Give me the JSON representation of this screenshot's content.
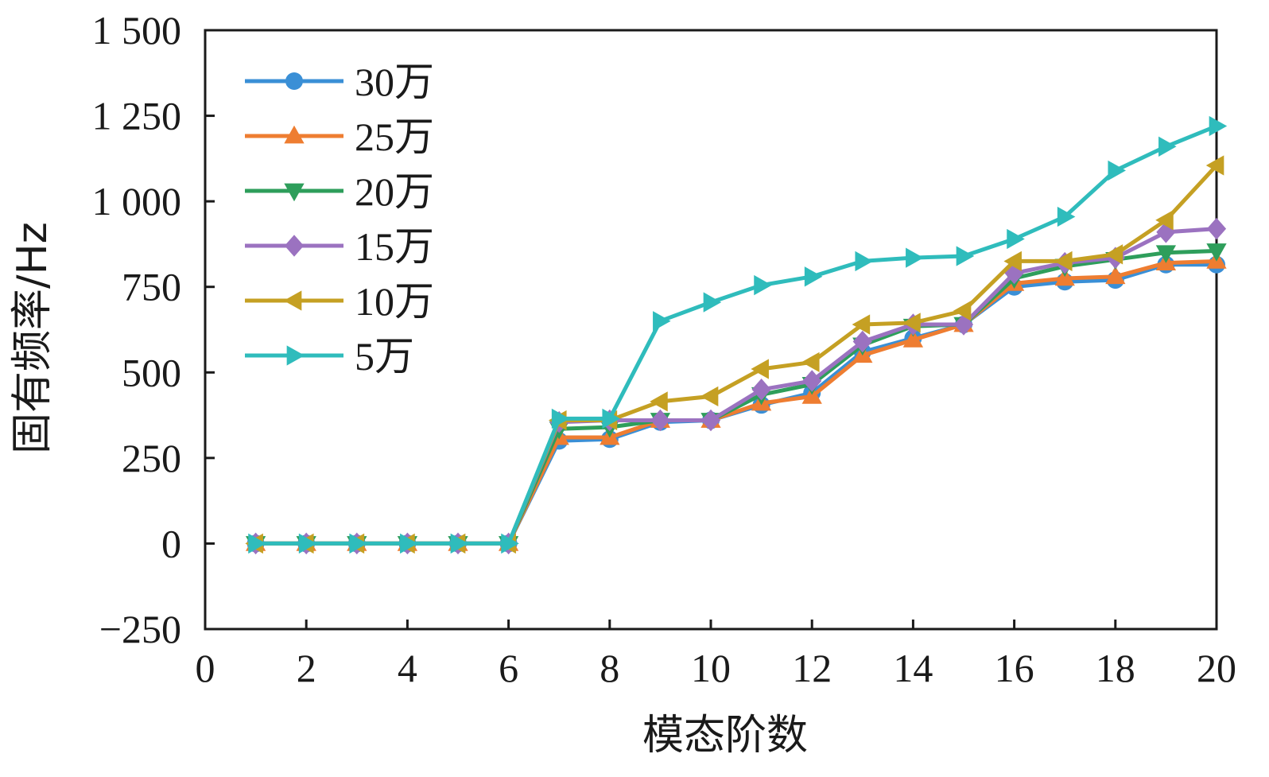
{
  "chart_data": {
    "type": "line",
    "xlabel": "模态阶数",
    "ylabel": "固有频率/Hz",
    "xlim": [
      0,
      20
    ],
    "ylim": [
      -250,
      1500
    ],
    "xticks": [
      0,
      2,
      4,
      6,
      8,
      10,
      12,
      14,
      16,
      18,
      20
    ],
    "yticks": [
      -250,
      0,
      250,
      500,
      750,
      1000,
      1250,
      1500
    ],
    "xtick_labels": [
      "0",
      "2",
      "4",
      "6",
      "8",
      "10",
      "12",
      "14",
      "16",
      "18",
      "20"
    ],
    "ytick_labels": [
      "−250",
      "0",
      "250",
      "500",
      "750",
      "1 000",
      "1 250",
      "1 500"
    ],
    "grid": false,
    "legend_position": "top-left",
    "x": [
      1,
      2,
      3,
      4,
      5,
      6,
      7,
      8,
      9,
      10,
      11,
      12,
      13,
      14,
      15,
      16,
      17,
      18,
      19,
      20
    ],
    "series": [
      {
        "name": "30万",
        "color": "#3a8fd6",
        "marker": "circle",
        "values": [
          0,
          0,
          0,
          0,
          0,
          0,
          300,
          305,
          355,
          360,
          405,
          440,
          560,
          600,
          640,
          750,
          765,
          770,
          815,
          815
        ]
      },
      {
        "name": "25万",
        "color": "#ee7d31",
        "marker": "triangle-up",
        "values": [
          0,
          0,
          0,
          0,
          0,
          0,
          310,
          310,
          360,
          360,
          410,
          430,
          550,
          595,
          640,
          760,
          775,
          780,
          820,
          825
        ]
      },
      {
        "name": "20万",
        "color": "#2e9e5b",
        "marker": "triangle-down",
        "values": [
          0,
          0,
          0,
          0,
          0,
          0,
          335,
          340,
          360,
          360,
          435,
          465,
          580,
          635,
          640,
          775,
          810,
          830,
          850,
          855
        ]
      },
      {
        "name": "15万",
        "color": "#9b72c0",
        "marker": "diamond",
        "values": [
          0,
          0,
          0,
          0,
          0,
          0,
          355,
          360,
          360,
          360,
          450,
          475,
          590,
          640,
          640,
          790,
          820,
          835,
          910,
          920
        ]
      },
      {
        "name": "10万",
        "color": "#c5a023",
        "marker": "triangle-left",
        "values": [
          0,
          0,
          0,
          0,
          0,
          0,
          360,
          360,
          415,
          430,
          510,
          530,
          640,
          645,
          680,
          825,
          825,
          845,
          945,
          1105
        ]
      },
      {
        "name": "5万",
        "color": "#2fbcbc",
        "marker": "triangle-right",
        "values": [
          0,
          0,
          0,
          0,
          0,
          0,
          365,
          365,
          650,
          705,
          755,
          780,
          825,
          835,
          840,
          890,
          955,
          1090,
          1160,
          1220
        ]
      }
    ]
  }
}
